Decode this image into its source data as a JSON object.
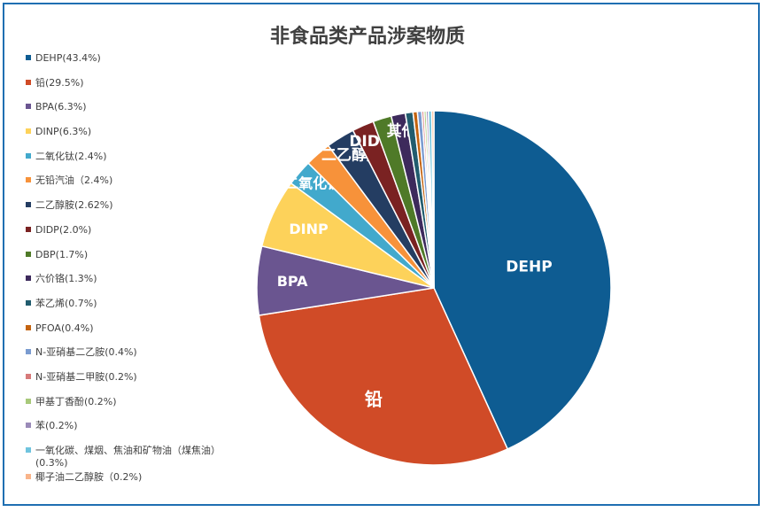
{
  "chart_data": {
    "type": "pie",
    "title": "非食品类产品涉案物质",
    "legend_position": "left",
    "slices": [
      {
        "legend": "DEHP(43.4%)",
        "label": "DEHP",
        "value": 43.4,
        "color": "#0e5c92"
      },
      {
        "legend": "铅(29.5%)",
        "label": "铅",
        "value": 29.5,
        "color": "#d04b27"
      },
      {
        "legend": "BPA(6.3%)",
        "label": "BPA",
        "value": 6.3,
        "color": "#6a5590"
      },
      {
        "legend": "DINP(6.3%)",
        "label": "DINP",
        "value": 6.3,
        "color": "#fdd25a"
      },
      {
        "legend": "二氧化钛(2.4%)",
        "label": "二氧化钛",
        "value": 2.4,
        "color": "#42a9cc"
      },
      {
        "legend": "无铅汽油（2.4%)",
        "label": "",
        "value": 2.4,
        "color": "#f7923a"
      },
      {
        "legend": "二乙醇胺(2.62%)",
        "label": "二乙醇胺",
        "value": 2.62,
        "color": "#243d62"
      },
      {
        "legend": "DIDP(2.0%)",
        "label": "DIDP",
        "value": 2.0,
        "color": "#7a2222"
      },
      {
        "legend": "DBP(1.7%)",
        "label": "",
        "value": 1.7,
        "color": "#4f7a28"
      },
      {
        "legend": "六价铬(1.3%)",
        "label": "其他",
        "value": 1.3,
        "color": "#3d2a5c"
      },
      {
        "legend": "苯乙烯(0.7%)",
        "label": "",
        "value": 0.7,
        "color": "#215c6e"
      },
      {
        "legend": "PFOA(0.4%)",
        "label": "",
        "value": 0.4,
        "color": "#c4630f"
      },
      {
        "legend": "N-亚硝基二乙胺(0.4%)",
        "label": "",
        "value": 0.4,
        "color": "#7a9bd0"
      },
      {
        "legend": "N-亚硝基二甲胺(0.2%)",
        "label": "",
        "value": 0.2,
        "color": "#d77a7a"
      },
      {
        "legend": "甲基丁香酚(0.2%)",
        "label": "",
        "value": 0.2,
        "color": "#a8c97a"
      },
      {
        "legend": "苯(0.2%)",
        "label": "",
        "value": 0.2,
        "color": "#9a8ab8"
      },
      {
        "legend": "一氧化碳、煤烟、焦油和矿物油（煤焦油）(0.3%)",
        "label": "",
        "value": 0.3,
        "color": "#6fc4de"
      },
      {
        "legend": "椰子油二乙醇胺（0.2%)",
        "label": "",
        "value": 0.2,
        "color": "#f9b48a"
      }
    ]
  }
}
